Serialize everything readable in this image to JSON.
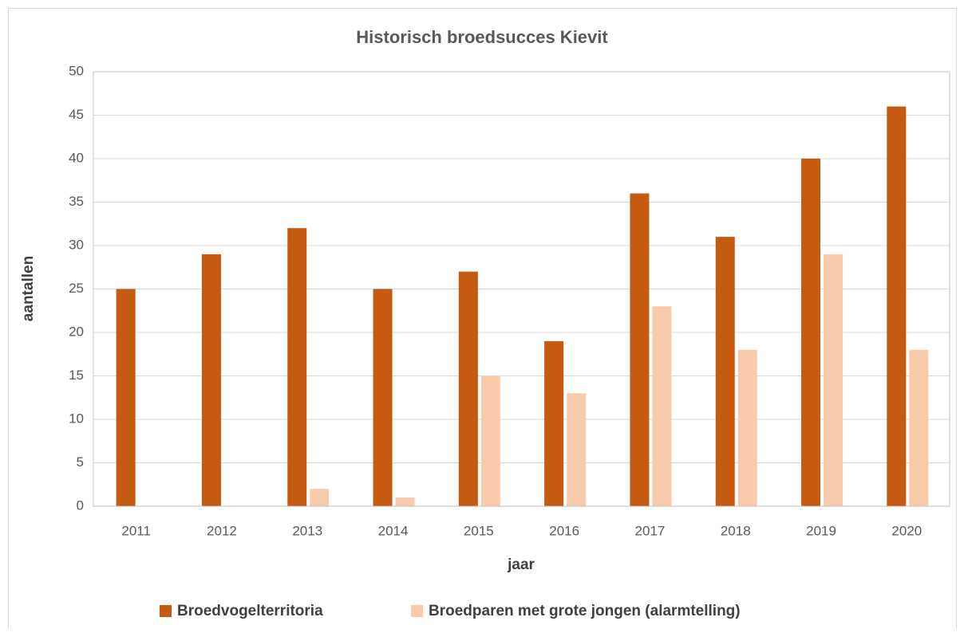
{
  "chart_data": {
    "type": "bar",
    "title": "Historisch broedsucces Kievit",
    "x_label": "jaar",
    "y_label": "aantallen",
    "categories": [
      "2011",
      "2012",
      "2013",
      "2014",
      "2015",
      "2016",
      "2017",
      "2018",
      "2019",
      "2020"
    ],
    "series": [
      {
        "name": "Broedvogelterritoria",
        "color": "#c55a11",
        "values": [
          25,
          29,
          32,
          25,
          27,
          19,
          36,
          31,
          40,
          46
        ]
      },
      {
        "name": "Broedparen met grote jongen (alarmtelling)",
        "color": "#f8cbad",
        "values": [
          0,
          0,
          2,
          1,
          15,
          13,
          23,
          18,
          29,
          18
        ]
      }
    ],
    "ylim": [
      0,
      50
    ],
    "yticks": [
      0,
      5,
      10,
      15,
      20,
      25,
      30,
      35,
      40,
      45,
      50
    ],
    "grid": true,
    "legend": "bottom"
  }
}
